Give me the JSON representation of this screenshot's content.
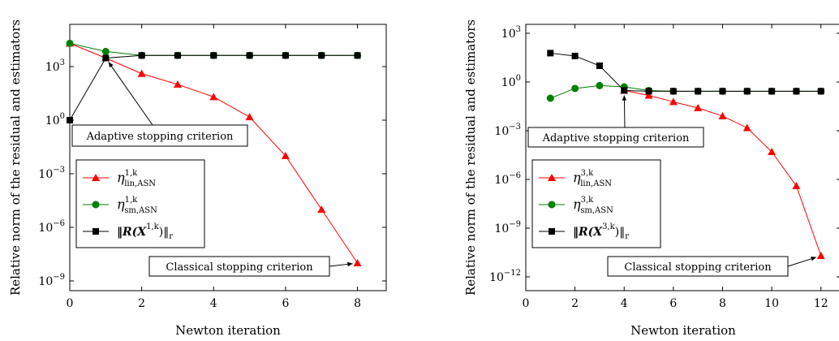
{
  "chart_data": [
    {
      "type": "line",
      "xlabel": "Newton iteration",
      "ylabel": "Relative norm of the residual and estimators",
      "yscale": "log",
      "xlim": [
        0,
        8.8
      ],
      "ylim": [
        1e-10,
        1000000.0
      ],
      "xticks": [
        "0",
        "2",
        "4",
        "6",
        "8"
      ],
      "yticks": [
        {
          "mant": "10",
          "exp": "3"
        },
        {
          "mant": "10",
          "exp": "0"
        },
        {
          "mant": "10",
          "exp": "−3"
        },
        {
          "mant": "10",
          "exp": "−6"
        },
        {
          "mant": "10",
          "exp": "−9"
        }
      ],
      "legend": {
        "placement": "left",
        "items": [
          {
            "sym": "η",
            "sup": "1,k",
            "sub": "lin,ASN"
          },
          {
            "sym": "η",
            "sup": "1,k",
            "sub": "sm,ASN"
          },
          {
            "text": "‖R(X",
            "sup": "1,k",
            "tail": ")‖",
            "sub": "r"
          }
        ]
      },
      "series": [
        {
          "color": "#ff0000",
          "marker": "triangle",
          "x": [
            0,
            1,
            2,
            3,
            4,
            5,
            6,
            7,
            8
          ],
          "y": [
            20000,
            3000,
            400,
            100,
            20,
            1.5,
            0.01,
            1e-05,
            1e-08
          ]
        },
        {
          "color": "#008000",
          "marker": "circle",
          "x": [
            0,
            1,
            2,
            3,
            4,
            5,
            6,
            7,
            8
          ],
          "y": [
            20000,
            7000,
            4200,
            4200,
            4200,
            4200,
            4200,
            4200,
            4200
          ]
        },
        {
          "color": "#000000",
          "marker": "square",
          "x": [
            0,
            1,
            2,
            3,
            4,
            5,
            6,
            7,
            8
          ],
          "y": [
            1,
            3000,
            4200,
            4200,
            4200,
            4200,
            4200,
            4200,
            4200
          ]
        }
      ],
      "annotations": [
        {
          "text": "Adaptive stopping criterion",
          "target": [
            1,
            3000
          ]
        },
        {
          "text": "Classical stopping criterion",
          "target": [
            8,
            1e-08
          ]
        }
      ]
    },
    {
      "type": "line",
      "xlabel": "Newton iteration",
      "ylabel": "Relative norm of the residual and estimators",
      "yscale": "log",
      "xlim": [
        0,
        12.8
      ],
      "ylim": [
        1e-13,
        10000.0
      ],
      "xticks": [
        "0",
        "2",
        "4",
        "6",
        "8",
        "10",
        "12"
      ],
      "yticks": [
        {
          "mant": "10",
          "exp": "3"
        },
        {
          "mant": "10",
          "exp": "0"
        },
        {
          "mant": "10",
          "exp": "−3"
        },
        {
          "mant": "10",
          "exp": "−6"
        },
        {
          "mant": "10",
          "exp": "−9"
        },
        {
          "mant": "10",
          "exp": "−12"
        }
      ],
      "legend": {
        "placement": "left",
        "items": [
          {
            "sym": "η",
            "sup": "3,k",
            "sub": "lin,ASN"
          },
          {
            "sym": "η",
            "sup": "3,k",
            "sub": "sm,ASN"
          },
          {
            "text": "‖R(X",
            "sup": "3,k",
            "tail": ")‖",
            "sub": "r"
          }
        ]
      },
      "series": [
        {
          "color": "#ff0000",
          "marker": "triangle",
          "x": [
            4,
            5,
            6,
            7,
            8,
            9,
            10,
            11,
            12
          ],
          "y": [
            0.3,
            0.15,
            0.06,
            0.025,
            0.008,
            0.0015,
            5e-05,
            4e-07,
            2e-11
          ]
        },
        {
          "color": "#008000",
          "marker": "circle",
          "x": [
            1,
            2,
            3,
            4,
            5,
            6,
            7,
            8,
            9,
            10,
            11,
            12
          ],
          "y": [
            0.1,
            0.4,
            0.6,
            0.5,
            0.3,
            0.27,
            0.27,
            0.27,
            0.27,
            0.27,
            0.27,
            0.27
          ]
        },
        {
          "color": "#000000",
          "marker": "square",
          "x": [
            1,
            2,
            3,
            4,
            5,
            6,
            7,
            8,
            9,
            10,
            11,
            12
          ],
          "y": [
            60,
            40,
            10,
            0.3,
            0.27,
            0.27,
            0.27,
            0.27,
            0.27,
            0.27,
            0.27,
            0.27
          ]
        }
      ],
      "annotations": [
        {
          "text": "Adaptive stopping criterion",
          "target": [
            4,
            0.3
          ]
        },
        {
          "text": "Classical stopping criterion",
          "target": [
            12,
            2e-11
          ]
        }
      ]
    }
  ]
}
